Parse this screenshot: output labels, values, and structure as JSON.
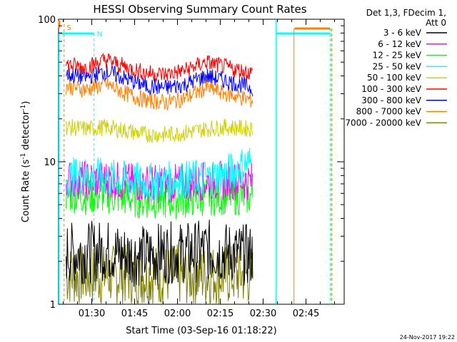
{
  "chart_data": {
    "type": "line",
    "title": "HESSI Observing Summary Count Rates",
    "xlabel": "Start Time (03-Sep-16 01:18:22)",
    "ylabel_main": "Count Rate (s",
    "ylabel_exp": "-1",
    "ylabel_tail": " detector",
    "ylabel_exp2": "-1",
    "ylabel_close": ")",
    "yscale": "log",
    "ylim": [
      1,
      100
    ],
    "xlim_minutes": [
      78.37,
      178.37
    ],
    "x_ticks": [
      {
        "minute": 90,
        "label": "01:30"
      },
      {
        "minute": 105,
        "label": "01:45"
      },
      {
        "minute": 120,
        "label": "02:00"
      },
      {
        "minute": 135,
        "label": "02:15"
      },
      {
        "minute": 150,
        "label": "02:30"
      },
      {
        "minute": 165,
        "label": "02:45"
      }
    ],
    "y_ticks": [
      {
        "value": 1,
        "label": "1"
      },
      {
        "value": 10,
        "label": "10"
      },
      {
        "value": 100,
        "label": "100"
      }
    ],
    "legend_header": [
      "Det 1,3, FDecim 1,",
      "Att 0"
    ],
    "footer_date": "24-Nov-2017 19:22",
    "flag_labels": {
      "saa": "S",
      "night": "N"
    },
    "colors": {
      "flag_cyan": "#00ffff",
      "flag_orange": "#ff8000"
    },
    "series": [
      {
        "name": "3 - 6 keV",
        "color": "#000000",
        "y": [
          2.3,
          2.3,
          2.4,
          2.2,
          2.2,
          2.3,
          2.3,
          2.4,
          2.3,
          2.2
        ]
      },
      {
        "name": "6 - 12 keV",
        "color": "#ff00ff",
        "y": [
          7.6,
          7.4,
          7.5,
          7.2,
          7.0,
          7.0,
          7.1,
          7.3,
          7.4,
          7.3
        ]
      },
      {
        "name": "12 - 25 keV",
        "color": "#00ff00",
        "y": [
          6.0,
          5.8,
          5.9,
          5.6,
          5.4,
          5.4,
          5.5,
          5.7,
          5.8,
          5.7
        ]
      },
      {
        "name": "25 - 50 keV",
        "color": "#00ffff",
        "y": [
          7.8,
          8.0,
          7.7,
          7.4,
          7.2,
          7.3,
          7.5,
          7.7,
          8.2,
          10.0
        ]
      },
      {
        "name": "50 - 100 keV",
        "color": "#d0d000",
        "y": [
          17.5,
          17.0,
          17.5,
          16.5,
          15.5,
          15.5,
          16.0,
          17.0,
          17.5,
          17.0
        ]
      },
      {
        "name": "100 - 300 keV",
        "color": "#ff0000",
        "y": [
          48,
          46,
          52,
          46,
          42,
          41,
          44,
          50,
          46,
          42
        ]
      },
      {
        "name": "300 - 800 keV",
        "color": "#0000ff",
        "y": [
          41,
          39,
          43,
          38,
          34,
          33,
          35,
          40,
          37,
          33
        ]
      },
      {
        "name": "800 - 7000 keV",
        "color": "#ff8000",
        "y": [
          34,
          32,
          35,
          30,
          27,
          26,
          28,
          33,
          30,
          27
        ]
      },
      {
        "name": "7000 - 20000 keV",
        "color": "#808000",
        "y": [
          1.6,
          1.6,
          1.6,
          1.6,
          1.6,
          1.6,
          1.6,
          1.6,
          1.6,
          1.6
        ]
      }
    ],
    "series_x_minutes": [
      81,
      88,
      95,
      102,
      109,
      116,
      123,
      130,
      137,
      146
    ],
    "series_x_end_minute": 146.5
  }
}
